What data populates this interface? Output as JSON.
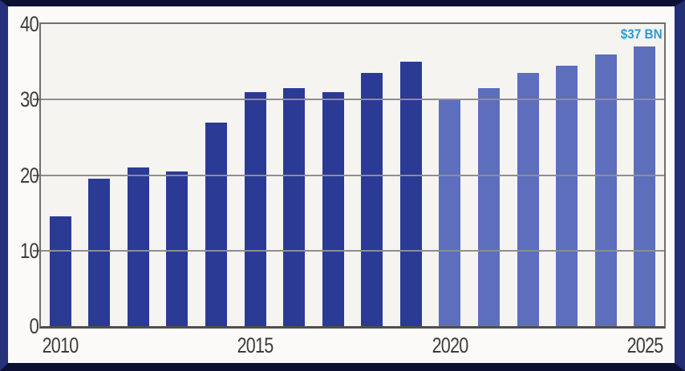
{
  "frame": {
    "border_side_color": "#27317B",
    "border_top_bottom_color": "#0C1134",
    "background": "#FBFAF8"
  },
  "chart_data": {
    "type": "bar",
    "title": "",
    "xlabel": "",
    "ylabel": "",
    "x": [
      2010,
      2011,
      2012,
      2013,
      2014,
      2015,
      2016,
      2017,
      2018,
      2019,
      2020,
      2021,
      2022,
      2023,
      2024,
      2025
    ],
    "values": [
      14.5,
      19.5,
      21,
      20.5,
      27,
      31,
      31.5,
      31,
      33.5,
      35,
      30,
      31.5,
      33.5,
      34.5,
      36,
      37
    ],
    "bar_color_actual": "#2B3A94",
    "bar_color_projected": "#5D6EBC",
    "projected_from_year": 2020,
    "ylim": [
      0,
      40
    ],
    "yticks": [
      0,
      10,
      20,
      30,
      40
    ],
    "xticks": [
      2010,
      2015,
      2020,
      2025
    ],
    "grid": true,
    "legend": false,
    "plot_background": "#F5F4F1",
    "gridline_color": "#8E8E8E",
    "tick_label_color": "#3C3C3C",
    "annotation": {
      "text": "$37 BN",
      "color": "#2D9AD5",
      "attached_to_year": 2025
    }
  }
}
